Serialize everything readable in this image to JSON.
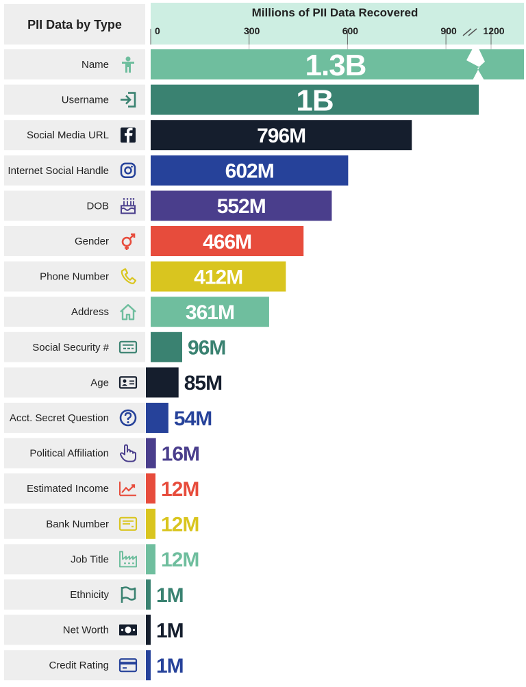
{
  "chart_data": {
    "type": "bar",
    "orientation": "horizontal",
    "header_label": "PII Data by Type",
    "xlabel": "Millions of PII Data Recovered",
    "ticks": [
      "0",
      "300",
      "600",
      "900",
      "1200"
    ],
    "tick_values": [
      0,
      300,
      600,
      900,
      1200
    ],
    "axis_break": [
      1000,
      1150
    ],
    "xlim": [
      0,
      1300
    ],
    "grid": true,
    "legend": "none",
    "categories": [
      "Name",
      "Username",
      "Social Media URL",
      "Internet Social Handle",
      "DOB",
      "Gender",
      "Phone Number",
      "Address",
      "Social Security #",
      "Age",
      "Acct. Secret Question",
      "Political Affiliation",
      "Estimated Income",
      "Bank Number",
      "Job Title",
      "Ethnicity",
      "Net Worth",
      "Credit Rating"
    ],
    "values": [
      1300,
      1000,
      796,
      602,
      552,
      466,
      412,
      361,
      96,
      85,
      54,
      16,
      12,
      12,
      12,
      1,
      1,
      1
    ],
    "value_labels": [
      "1.3B",
      "1B",
      "796M",
      "602M",
      "552M",
      "466M",
      "412M",
      "361M",
      "96M",
      "85M",
      "54M",
      "16M",
      "12M",
      "12M",
      "12M",
      "1M",
      "1M",
      "1M"
    ],
    "icons": [
      "person-icon",
      "login-arrow-icon",
      "facebook-icon",
      "instagram-icon",
      "birthday-cake-icon",
      "gender-icon",
      "phone-icon",
      "house-icon",
      "id-card-icon",
      "contact-card-icon",
      "question-circle-icon",
      "hand-pointer-icon",
      "trend-chart-icon",
      "bank-card-icon",
      "factory-icon",
      "flag-icon",
      "money-bill-icon",
      "credit-card-icon"
    ],
    "colors": [
      "#6fbe9e",
      "#3a8271",
      "#151e2d",
      "#26429a",
      "#4a3e8c",
      "#e74c3c",
      "#d9c51f",
      "#6fbe9e",
      "#3a8271",
      "#151e2d",
      "#26429a",
      "#4a3e8c",
      "#e74c3c",
      "#d9c51f",
      "#6fbe9e",
      "#3a8271",
      "#151e2d",
      "#26429a"
    ],
    "label_bg": "#eeeeee",
    "axis_bg": "#cdeee2"
  }
}
